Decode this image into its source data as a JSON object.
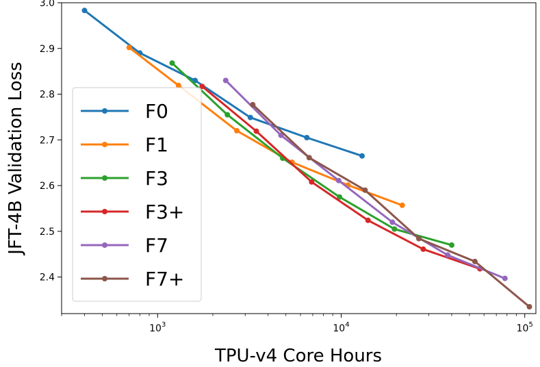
{
  "chart_data": {
    "type": "line",
    "xscale": "log",
    "xlabel": "TPU-v4 Core Hours",
    "ylabel": "JFT-4B Validation Loss",
    "xlim": [
      300,
      115000
    ],
    "ylim": [
      2.32,
      3.0
    ],
    "yticks": [
      2.4,
      2.5,
      2.6,
      2.7,
      2.8,
      2.9,
      3.0
    ],
    "ytick_labels": [
      "2.4",
      "2.5",
      "2.6",
      "2.7",
      "2.8",
      "2.9",
      "3.0"
    ],
    "xticks": [
      {
        "value": 1000,
        "base": "10",
        "exp": "3"
      },
      {
        "value": 10000,
        "base": "10",
        "exp": "4"
      },
      {
        "value": 100000,
        "base": "10",
        "exp": "5"
      }
    ],
    "legend_position": "left",
    "series": [
      {
        "name": "F0",
        "color": "#1f77b4",
        "x": [
          400,
          800,
          1600,
          3200,
          6500,
          13000
        ],
        "y": [
          2.983,
          2.89,
          2.83,
          2.749,
          2.705,
          2.665
        ]
      },
      {
        "name": "F1",
        "color": "#ff7f0e",
        "x": [
          700,
          1300,
          2700,
          5400,
          10900,
          21500
        ],
        "y": [
          2.902,
          2.819,
          2.72,
          2.651,
          2.601,
          2.557
        ]
      },
      {
        "name": "F3",
        "color": "#2ca02c",
        "x": [
          1200,
          2400,
          4800,
          9800,
          19500,
          40000
        ],
        "y": [
          2.868,
          2.755,
          2.66,
          2.575,
          2.505,
          2.47
        ]
      },
      {
        "name": "F3+",
        "color": "#d62728",
        "x": [
          1750,
          3450,
          6900,
          14000,
          28000,
          57000
        ],
        "y": [
          2.817,
          2.719,
          2.608,
          2.524,
          2.461,
          2.418
        ]
      },
      {
        "name": "F7",
        "color": "#9467bd",
        "x": [
          2350,
          4700,
          9700,
          19000,
          38000,
          78000
        ],
        "y": [
          2.83,
          2.71,
          2.611,
          2.52,
          2.448,
          2.397
        ]
      },
      {
        "name": "F7+",
        "color": "#8c564b",
        "x": [
          3300,
          6700,
          13500,
          26500,
          53500,
          106000
        ],
        "y": [
          2.777,
          2.661,
          2.59,
          2.484,
          2.434,
          2.335
        ]
      }
    ]
  }
}
